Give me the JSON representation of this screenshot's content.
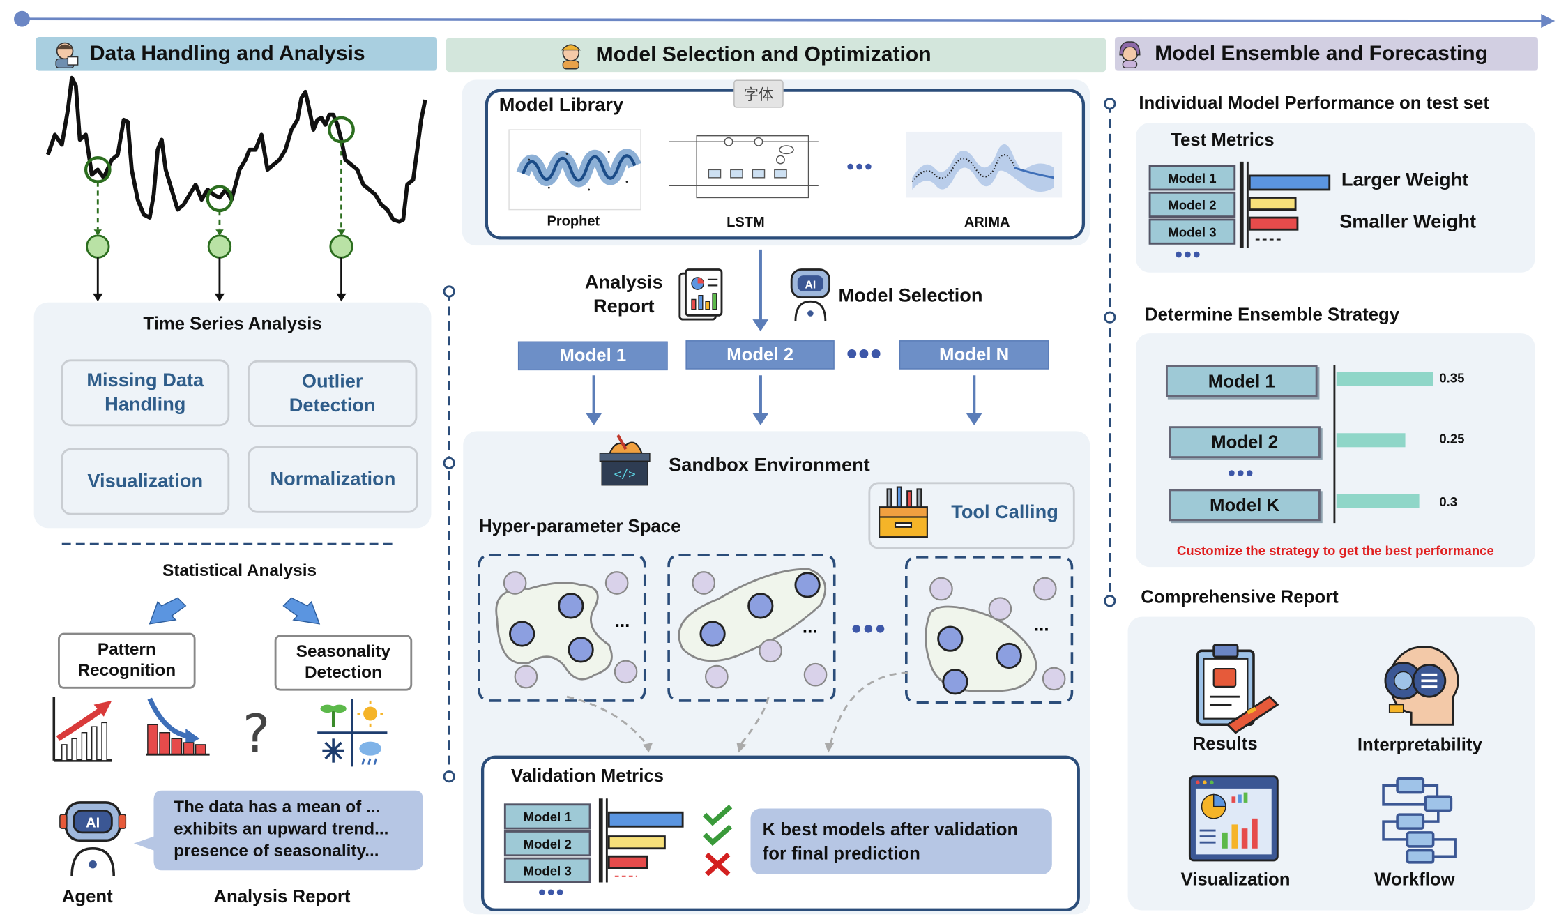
{
  "col1": {
    "header": "Data Handling and Analysis",
    "tsa_title": "Time Series Analysis",
    "tsa_items": [
      "Missing Data\nHandling",
      "Outlier\nDetection",
      "Visualization",
      "Normalization"
    ],
    "stat_title": "Statistical Analysis",
    "pattern": "Pattern\nRecognition",
    "season": "Seasonality\nDetection",
    "agent_label": "Agent",
    "report_text": "The data has a mean of ...\nexhibits an upward trend...\npresence of seasonality...",
    "report_label": "Analysis Report"
  },
  "col2": {
    "header": "Model Selection and Optimization",
    "tooltip": "字体",
    "library_title": "Model Library",
    "lib_models": [
      "Prophet",
      "LSTM",
      "ARIMA"
    ],
    "analysis_report": "Analysis\nReport",
    "model_selection": "Model Selection",
    "model_buttons": [
      "Model 1",
      "Model 2",
      "Model N"
    ],
    "sandbox": "Sandbox Environment",
    "tool_calling": "Tool Calling",
    "hyper_space": "Hyper-parameter Space",
    "validation_title": "Validation Metrics",
    "val_models": [
      "Model 1",
      "Model 2",
      "Model 3"
    ],
    "k_best": "K best models after validation\nfor final prediction"
  },
  "col3": {
    "header": "Model Ensemble and Forecasting",
    "perf_title": "Individual Model Performance on test set",
    "test_metrics": "Test Metrics",
    "test_models": [
      "Model 1",
      "Model 2",
      "Model 3"
    ],
    "larger": "Larger Weight",
    "smaller": "Smaller Weight",
    "ensemble_title": "Determine Ensemble Strategy",
    "ensemble": [
      {
        "name": "Model 1",
        "weight": "0.35",
        "value": 0.35
      },
      {
        "name": "Model 2",
        "weight": "0.25",
        "value": 0.25
      },
      {
        "name": "Model K",
        "weight": "0.3",
        "value": 0.3
      }
    ],
    "customize": "Customize the strategy to get the best performance",
    "report_title": "Comprehensive Report",
    "report_items": [
      "Results",
      "Interpretability",
      "Visualization",
      "Workflow"
    ]
  },
  "colors": {
    "arrow_line": "#6b86c4",
    "hdr1": "#a9cfe0",
    "hdr2": "#d3e6dc",
    "hdr3": "#d2cfe2",
    "accent_red": "#e02020",
    "model_btn": "#6d8fc7",
    "ensemble_bar": "#8fd6c8"
  }
}
